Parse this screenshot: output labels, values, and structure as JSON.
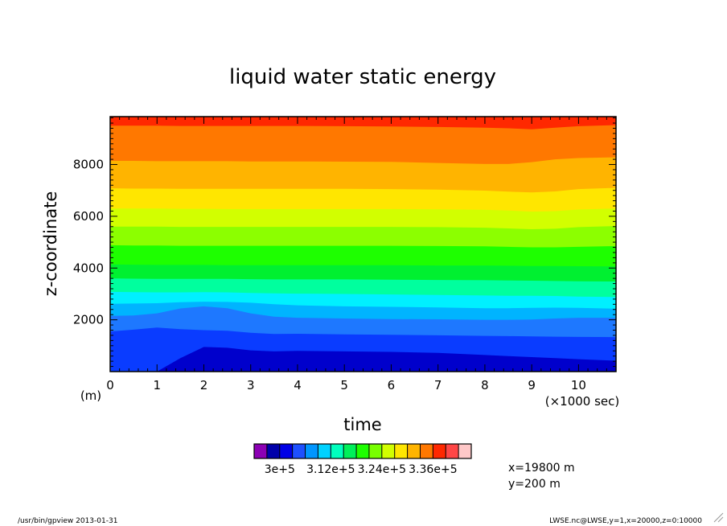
{
  "chart_data": {
    "type": "heatmap",
    "title": "liquid water static energy",
    "xlabel": "time",
    "ylabel": "z-coordinate",
    "xunit": "(×1000 sec)",
    "yunit": "(m)",
    "xlim": [
      0,
      10.8
    ],
    "ylim": [
      0,
      9850
    ],
    "x_ticks": [
      0,
      1,
      2,
      3,
      4,
      5,
      6,
      7,
      8,
      9,
      10
    ],
    "x_tick_labels": [
      "0",
      "1",
      "2",
      "3",
      "4",
      "5",
      "6",
      "7",
      "8",
      "9",
      "10"
    ],
    "y_ticks": [
      2000,
      4000,
      6000,
      8000
    ],
    "y_tick_labels": [
      "2000",
      "4000",
      "6000",
      "8000"
    ],
    "contour_x": [
      0,
      0.5,
      1,
      1.5,
      2,
      2.5,
      3,
      3.5,
      4,
      5,
      6,
      7,
      8,
      8.5,
      9,
      9.5,
      10,
      10.8
    ],
    "contour_levels": [
      {
        "color": "#0000cc",
        "z": [
          0,
          0,
          0,
          520,
          950,
          920,
          820,
          780,
          800,
          780,
          760,
          720,
          640,
          600,
          560,
          520,
          480,
          420
        ]
      },
      {
        "color": "#0a3cff",
        "z": [
          1550,
          1620,
          1700,
          1640,
          1600,
          1580,
          1500,
          1450,
          1460,
          1440,
          1420,
          1400,
          1380,
          1370,
          1360,
          1350,
          1340,
          1330
        ]
      },
      {
        "color": "#1e78ff",
        "z": [
          2150,
          2170,
          2250,
          2440,
          2520,
          2450,
          2250,
          2120,
          2080,
          2050,
          2030,
          2020,
          2000,
          2000,
          2010,
          2050,
          2080,
          2080
        ]
      },
      {
        "color": "#00b4ff",
        "z": [
          2620,
          2630,
          2640,
          2680,
          2700,
          2690,
          2660,
          2600,
          2560,
          2520,
          2500,
          2480,
          2450,
          2450,
          2460,
          2470,
          2460,
          2430
        ]
      },
      {
        "color": "#00f0ff",
        "z": [
          3080,
          3070,
          3060,
          3060,
          3070,
          3060,
          3040,
          3020,
          3010,
          3000,
          2980,
          2960,
          2940,
          2930,
          2930,
          2920,
          2900,
          2880
        ]
      },
      {
        "color": "#00ff9e",
        "z": [
          3600,
          3590,
          3580,
          3580,
          3580,
          3580,
          3570,
          3560,
          3560,
          3560,
          3550,
          3540,
          3530,
          3520,
          3510,
          3500,
          3490,
          3480
        ]
      },
      {
        "color": "#00f030",
        "z": [
          4140,
          4130,
          4120,
          4120,
          4120,
          4110,
          4110,
          4110,
          4110,
          4110,
          4110,
          4100,
          4100,
          4090,
          4080,
          4080,
          4070,
          4060
        ]
      },
      {
        "color": "#1eff00",
        "z": [
          4880,
          4870,
          4870,
          4860,
          4860,
          4860,
          4860,
          4860,
          4860,
          4860,
          4860,
          4850,
          4840,
          4820,
          4800,
          4800,
          4820,
          4850
        ]
      },
      {
        "color": "#8cff00",
        "z": [
          5600,
          5600,
          5600,
          5590,
          5590,
          5590,
          5590,
          5590,
          5590,
          5590,
          5590,
          5580,
          5560,
          5530,
          5500,
          5520,
          5580,
          5620
        ]
      },
      {
        "color": "#d2ff00",
        "z": [
          6300,
          6300,
          6300,
          6290,
          6290,
          6280,
          6280,
          6280,
          6280,
          6280,
          6280,
          6270,
          6250,
          6220,
          6180,
          6200,
          6260,
          6300
        ]
      },
      {
        "color": "#ffe600",
        "z": [
          7080,
          7070,
          7070,
          7060,
          7060,
          7060,
          7060,
          7060,
          7060,
          7060,
          7050,
          7030,
          6990,
          6950,
          6920,
          6960,
          7050,
          7100
        ]
      },
      {
        "color": "#ffb400",
        "z": [
          8140,
          8140,
          8130,
          8130,
          8130,
          8130,
          8120,
          8120,
          8120,
          8110,
          8100,
          8060,
          8020,
          8020,
          8090,
          8200,
          8250,
          8280
        ]
      },
      {
        "color": "#ff7800",
        "z": [
          9500,
          9500,
          9500,
          9490,
          9490,
          9490,
          9490,
          9490,
          9490,
          9480,
          9470,
          9450,
          9420,
          9400,
          9360,
          9420,
          9480,
          9520
        ]
      },
      {
        "color": "#ff2800",
        "z": [
          9850,
          9850,
          9850,
          9850,
          9850,
          9850,
          9850,
          9850,
          9850,
          9850,
          9850,
          9850,
          9850,
          9850,
          9850,
          9850,
          9850,
          9850
        ]
      }
    ],
    "top_band_color": "#ff4646",
    "colorbar": {
      "colors": [
        "#8c00b4",
        "#0000aa",
        "#0000e6",
        "#1e50ff",
        "#0096ff",
        "#00d2ff",
        "#00ffbe",
        "#00f05a",
        "#1eff00",
        "#78ff00",
        "#d2ff00",
        "#ffe600",
        "#ffb400",
        "#ff7800",
        "#ff2800",
        "#ff4646",
        "#ffc8c8"
      ],
      "tick_labels": [
        "3e+5",
        "3.12e+5",
        "3.24e+5",
        "3.36e+5"
      ],
      "label_bounds": [
        2,
        6,
        10,
        14
      ]
    },
    "legend": "none",
    "grid": false
  },
  "info": {
    "x_position": "x=19800 m",
    "y_position": "y=200 m"
  },
  "footer": {
    "left": "/usr/bin/gpview  2013-01-31",
    "right": "LWSE.nc@LWSE,y=1,x=20000,z=0:10000"
  }
}
